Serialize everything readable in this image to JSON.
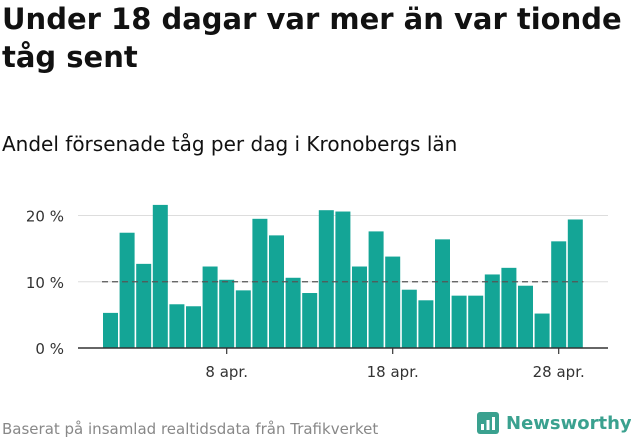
{
  "title": "Under 18 dagar var mer än var tionde tåg sent",
  "subtitle": "Andel försenade tåg per dag i Kronobergs län",
  "footer": "Baserat på insamlad realtidsdata från Trafikverket",
  "logo": {
    "text": "Newsworthy",
    "icon": "bar-chart-logo-icon",
    "color": "#3aa18f"
  },
  "chart_data": {
    "type": "bar",
    "y_unit": "%",
    "ylim": [
      0,
      22
    ],
    "y_ticks": [
      {
        "value": 0,
        "label": "0 %"
      },
      {
        "value": 10,
        "label": "10 %"
      },
      {
        "value": 20,
        "label": "20 %"
      }
    ],
    "x_ticks": [
      {
        "index": 7,
        "label": "8 apr."
      },
      {
        "index": 17,
        "label": "18 apr."
      },
      {
        "index": 27,
        "label": "28 apr."
      }
    ],
    "values": [
      5.3,
      17.4,
      12.7,
      21.6,
      6.6,
      6.3,
      12.3,
      10.3,
      8.7,
      19.5,
      17.0,
      10.6,
      8.3,
      20.8,
      20.6,
      12.3,
      17.6,
      13.8,
      8.8,
      7.2,
      16.4,
      7.9,
      7.9,
      11.1,
      12.1,
      9.4,
      5.2,
      16.1,
      19.4
    ],
    "reference_line": 10,
    "bar_color": "#14a596",
    "reference_line_color": "#555555",
    "grid": true
  }
}
